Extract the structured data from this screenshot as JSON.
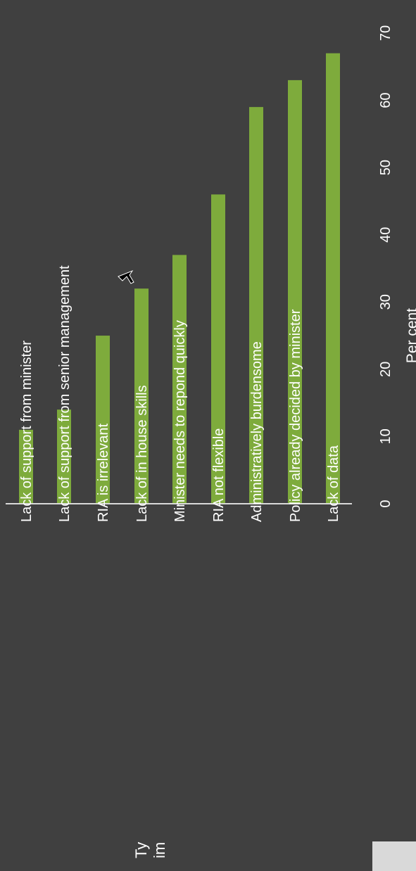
{
  "chart_data": {
    "type": "bar",
    "orientation": "horizontal",
    "categories": [
      "Lack of support from minister",
      "Lack of support from senior management",
      "RIA is irrelevant",
      "Lack of in house skills",
      "Minister needs to repond quickly",
      "RIA not flexible",
      "Administratively burdensome",
      "Policy already decided by minister",
      "Lack of data"
    ],
    "values": [
      11,
      14,
      25,
      32,
      37,
      46,
      59,
      63,
      67
    ],
    "xlabel": "Per cent",
    "xlim": [
      0,
      70
    ],
    "xticks": [
      0,
      10,
      20,
      30,
      40,
      50,
      60,
      70
    ],
    "bar_color": "#7eab3c",
    "grid": false
  },
  "fragments": {
    "line1": "Ty",
    "line2": "im"
  }
}
